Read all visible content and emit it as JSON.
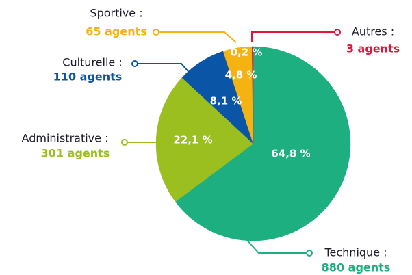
{
  "chart_data": {
    "type": "pie",
    "categories": [
      "Technique :",
      "Administrative :",
      "Culturelle :",
      "Sportive :",
      "Autres :"
    ],
    "values": [
      64.8,
      22.1,
      8.1,
      4.8,
      0.2
    ],
    "value_labels": [
      "64,8 %",
      "22,1 %",
      "8,1 %",
      "4,8 %",
      "0,2 %"
    ],
    "counts": [
      880,
      301,
      110,
      65,
      3
    ],
    "count_labels": [
      "880 agents",
      "301 agents",
      "110 agents",
      "65 agents",
      "3 agents"
    ],
    "colors": [
      "#1daf7f",
      "#9bbf1e",
      "#0a55a5",
      "#f5b312",
      "#e2143c"
    ]
  }
}
